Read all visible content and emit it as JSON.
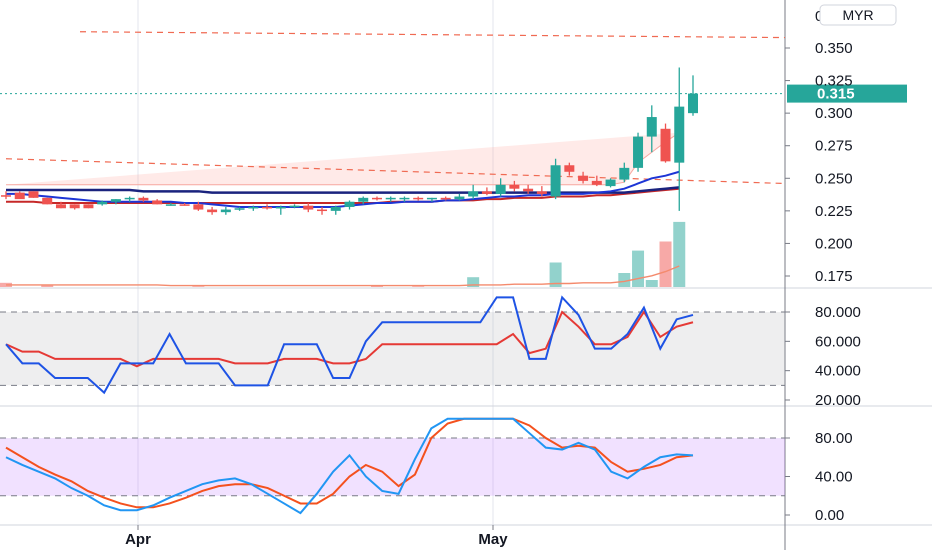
{
  "chart_data": [
    {
      "type": "candlestick",
      "title": "",
      "currency": "MYR",
      "price_axis": {
        "ylim": [
          0.16,
          0.3625
        ],
        "ticks": [
          "0.350",
          "0.325",
          "0.300",
          "0.275",
          "0.250",
          "0.225",
          "0.200",
          "0.175"
        ]
      },
      "last_price": {
        "value": 0.315,
        "label": "0.315"
      },
      "x_ticks": [
        "Apr",
        "May"
      ],
      "candles": [
        {
          "o": 0.237,
          "h": 0.24,
          "l": 0.234,
          "c": 0.236
        },
        {
          "o": 0.239,
          "h": 0.24,
          "l": 0.235,
          "c": 0.234
        },
        {
          "o": 0.24,
          "h": 0.24,
          "l": 0.235,
          "c": 0.235
        },
        {
          "o": 0.235,
          "h": 0.235,
          "l": 0.23,
          "c": 0.23
        },
        {
          "o": 0.23,
          "h": 0.232,
          "l": 0.227,
          "c": 0.227
        },
        {
          "o": 0.23,
          "h": 0.23,
          "l": 0.226,
          "c": 0.227
        },
        {
          "o": 0.23,
          "h": 0.23,
          "l": 0.227,
          "c": 0.227
        },
        {
          "o": 0.23,
          "h": 0.233,
          "l": 0.229,
          "c": 0.232
        },
        {
          "o": 0.232,
          "h": 0.234,
          "l": 0.23,
          "c": 0.234
        },
        {
          "o": 0.234,
          "h": 0.236,
          "l": 0.232,
          "c": 0.235
        },
        {
          "o": 0.235,
          "h": 0.236,
          "l": 0.232,
          "c": 0.233
        },
        {
          "o": 0.233,
          "h": 0.234,
          "l": 0.23,
          "c": 0.23
        },
        {
          "o": 0.23,
          "h": 0.231,
          "l": 0.229,
          "c": 0.23
        },
        {
          "o": 0.23,
          "h": 0.231,
          "l": 0.229,
          "c": 0.229
        },
        {
          "o": 0.23,
          "h": 0.232,
          "l": 0.225,
          "c": 0.226
        },
        {
          "o": 0.226,
          "h": 0.228,
          "l": 0.222,
          "c": 0.224
        },
        {
          "o": 0.224,
          "h": 0.228,
          "l": 0.222,
          "c": 0.226
        },
        {
          "o": 0.226,
          "h": 0.228,
          "l": 0.225,
          "c": 0.227
        },
        {
          "o": 0.227,
          "h": 0.229,
          "l": 0.225,
          "c": 0.228
        },
        {
          "o": 0.228,
          "h": 0.23,
          "l": 0.226,
          "c": 0.227
        },
        {
          "o": 0.227,
          "h": 0.229,
          "l": 0.222,
          "c": 0.228
        },
        {
          "o": 0.228,
          "h": 0.23,
          "l": 0.227,
          "c": 0.229
        },
        {
          "o": 0.229,
          "h": 0.231,
          "l": 0.224,
          "c": 0.226
        },
        {
          "o": 0.226,
          "h": 0.228,
          "l": 0.222,
          "c": 0.225
        },
        {
          "o": 0.225,
          "h": 0.229,
          "l": 0.222,
          "c": 0.228
        },
        {
          "o": 0.228,
          "h": 0.233,
          "l": 0.226,
          "c": 0.232
        },
        {
          "o": 0.232,
          "h": 0.236,
          "l": 0.23,
          "c": 0.235
        },
        {
          "o": 0.235,
          "h": 0.236,
          "l": 0.233,
          "c": 0.234
        },
        {
          "o": 0.234,
          "h": 0.236,
          "l": 0.232,
          "c": 0.235
        },
        {
          "o": 0.235,
          "h": 0.236,
          "l": 0.232,
          "c": 0.235
        },
        {
          "o": 0.235,
          "h": 0.236,
          "l": 0.233,
          "c": 0.234
        },
        {
          "o": 0.234,
          "h": 0.235,
          "l": 0.232,
          "c": 0.235
        },
        {
          "o": 0.235,
          "h": 0.236,
          "l": 0.233,
          "c": 0.234
        },
        {
          "o": 0.234,
          "h": 0.238,
          "l": 0.233,
          "c": 0.236
        },
        {
          "o": 0.236,
          "h": 0.245,
          "l": 0.234,
          "c": 0.24
        },
        {
          "o": 0.24,
          "h": 0.243,
          "l": 0.237,
          "c": 0.238
        },
        {
          "o": 0.238,
          "h": 0.25,
          "l": 0.236,
          "c": 0.245
        },
        {
          "o": 0.245,
          "h": 0.248,
          "l": 0.24,
          "c": 0.242
        },
        {
          "o": 0.242,
          "h": 0.245,
          "l": 0.238,
          "c": 0.24
        },
        {
          "o": 0.24,
          "h": 0.244,
          "l": 0.236,
          "c": 0.238
        },
        {
          "o": 0.236,
          "h": 0.265,
          "l": 0.234,
          "c": 0.26
        },
        {
          "o": 0.26,
          "h": 0.262,
          "l": 0.252,
          "c": 0.255
        },
        {
          "o": 0.252,
          "h": 0.255,
          "l": 0.246,
          "c": 0.248
        },
        {
          "o": 0.248,
          "h": 0.252,
          "l": 0.244,
          "c": 0.245
        },
        {
          "o": 0.244,
          "h": 0.25,
          "l": 0.243,
          "c": 0.249
        },
        {
          "o": 0.249,
          "h": 0.262,
          "l": 0.247,
          "c": 0.258
        },
        {
          "o": 0.258,
          "h": 0.285,
          "l": 0.255,
          "c": 0.282
        },
        {
          "o": 0.282,
          "h": 0.306,
          "l": 0.27,
          "c": 0.297
        },
        {
          "o": 0.288,
          "h": 0.292,
          "l": 0.262,
          "c": 0.263
        },
        {
          "o": 0.262,
          "h": 0.335,
          "l": 0.225,
          "c": 0.305
        },
        {
          "o": 0.3,
          "h": 0.329,
          "l": 0.298,
          "c": 0.315
        }
      ],
      "volume": [
        6,
        0,
        0,
        3,
        0,
        0,
        0,
        0,
        0,
        0,
        0,
        0,
        0,
        0,
        1,
        0,
        0,
        0,
        0,
        0,
        0,
        0,
        0,
        0,
        0,
        0,
        0,
        2,
        0,
        0,
        1,
        0,
        0,
        0,
        14,
        0,
        0,
        0,
        0,
        0,
        35,
        0,
        0,
        0,
        0,
        20,
        52,
        10,
        65,
        93
      ],
      "volume_ma": [
        3,
        3,
        3,
        3,
        3,
        3,
        3,
        3,
        3,
        3,
        3,
        3,
        2,
        2,
        2,
        2,
        2,
        2,
        2,
        2,
        2,
        2,
        2,
        2,
        2,
        2,
        2,
        2,
        2,
        2,
        2,
        2,
        2,
        2,
        3,
        3,
        3,
        4,
        4,
        4,
        5,
        5,
        6,
        6,
        6,
        8,
        12,
        16,
        22,
        30
      ],
      "overlays": {
        "upper_line": [
          0.245,
          0.245,
          0.245,
          0.245,
          0.245,
          0.245,
          0.245,
          0.245,
          0.245,
          0.245,
          0.245,
          0.245,
          0.245,
          0.245,
          0.245,
          0.245,
          0.245,
          0.245,
          0.245,
          0.245,
          0.245,
          0.245,
          0.245,
          0.245,
          0.245,
          0.245,
          0.245,
          0.245,
          0.245,
          0.245,
          0.245,
          0.245,
          0.245,
          0.245,
          0.245,
          0.245,
          0.245,
          0.245,
          0.245,
          0.245,
          0.245,
          0.245,
          0.245,
          0.245,
          0.245,
          0.247,
          0.262,
          0.27,
          0.278,
          0.285
        ],
        "fast_ma": [
          0.238,
          0.238,
          0.237,
          0.236,
          0.235,
          0.234,
          0.233,
          0.232,
          0.232,
          0.232,
          0.232,
          0.232,
          0.232,
          0.231,
          0.231,
          0.23,
          0.229,
          0.228,
          0.228,
          0.228,
          0.228,
          0.228,
          0.228,
          0.228,
          0.228,
          0.229,
          0.23,
          0.231,
          0.231,
          0.232,
          0.232,
          0.232,
          0.233,
          0.233,
          0.234,
          0.235,
          0.236,
          0.236,
          0.237,
          0.237,
          0.238,
          0.238,
          0.238,
          0.239,
          0.24,
          0.242,
          0.246,
          0.25,
          0.252,
          0.255
        ],
        "slow_ma": [
          0.241,
          0.241,
          0.241,
          0.241,
          0.241,
          0.241,
          0.241,
          0.241,
          0.241,
          0.241,
          0.24,
          0.24,
          0.24,
          0.24,
          0.24,
          0.239,
          0.239,
          0.239,
          0.239,
          0.239,
          0.239,
          0.239,
          0.239,
          0.239,
          0.239,
          0.239,
          0.239,
          0.239,
          0.239,
          0.239,
          0.239,
          0.239,
          0.239,
          0.239,
          0.239,
          0.239,
          0.239,
          0.239,
          0.239,
          0.239,
          0.239,
          0.239,
          0.239,
          0.239,
          0.239,
          0.239,
          0.24,
          0.241,
          0.242,
          0.243
        ],
        "red_ma": [
          0.232,
          0.232,
          0.232,
          0.231,
          0.231,
          0.231,
          0.231,
          0.231,
          0.231,
          0.231,
          0.231,
          0.231,
          0.231,
          0.231,
          0.231,
          0.231,
          0.231,
          0.231,
          0.231,
          0.231,
          0.231,
          0.231,
          0.231,
          0.231,
          0.231,
          0.231,
          0.231,
          0.231,
          0.232,
          0.232,
          0.232,
          0.232,
          0.233,
          0.233,
          0.233,
          0.234,
          0.234,
          0.235,
          0.235,
          0.235,
          0.236,
          0.236,
          0.236,
          0.237,
          0.237,
          0.238,
          0.239,
          0.24,
          0.241,
          0.242
        ],
        "dashed_trend": [
          {
            "x": 0,
            "y": 0.265
          },
          {
            "x": 49,
            "y": 0.246
          }
        ],
        "dashed_top": [
          {
            "x": 4,
            "y": 0.3625
          },
          {
            "x": 49,
            "y": 0.358
          }
        ]
      }
    },
    {
      "type": "line",
      "title": "",
      "ylim": [
        17.5,
        90
      ],
      "y_ticks": [
        "80.000",
        "60.000",
        "40.000",
        "20.000"
      ],
      "band": [
        30,
        80
      ],
      "series": [
        {
          "color": "#1e53e5",
          "values": [
            58,
            45,
            45,
            35,
            35,
            35,
            25,
            45,
            45,
            45,
            65,
            45,
            45,
            45,
            30,
            30,
            30,
            58,
            58,
            58,
            35,
            35,
            60,
            73,
            73,
            73,
            73,
            73,
            73,
            73,
            90,
            90,
            48,
            48,
            90,
            78,
            55,
            55,
            65,
            83,
            55,
            75,
            78
          ]
        },
        {
          "color": "#e53935",
          "values": [
            58,
            53,
            53,
            48,
            48,
            48,
            48,
            48,
            43,
            48,
            48,
            48,
            48,
            48,
            45,
            45,
            45,
            48,
            48,
            48,
            45,
            45,
            48,
            58,
            58,
            58,
            58,
            58,
            58,
            58,
            58,
            65,
            52,
            55,
            80,
            70,
            58,
            58,
            63,
            80,
            63,
            70,
            73
          ]
        }
      ]
    },
    {
      "type": "line",
      "title": "",
      "ylim": [
        -8,
        108
      ],
      "y_ticks": [
        "80.00",
        "40.00",
        "0.00"
      ],
      "band": [
        20,
        80
      ],
      "series": [
        {
          "color": "#2196f3",
          "values": [
            60,
            52,
            45,
            38,
            28,
            20,
            10,
            5,
            5,
            10,
            18,
            25,
            32,
            36,
            38,
            32,
            22,
            12,
            2,
            22,
            45,
            62,
            40,
            25,
            22,
            58,
            90,
            100,
            100,
            100,
            100,
            100,
            85,
            70,
            68,
            75,
            68,
            45,
            38,
            50,
            60,
            63,
            62
          ]
        },
        {
          "color": "#f4511e",
          "values": [
            70,
            60,
            50,
            42,
            35,
            25,
            18,
            12,
            8,
            8,
            12,
            18,
            25,
            30,
            32,
            32,
            28,
            20,
            12,
            12,
            22,
            40,
            52,
            45,
            30,
            42,
            80,
            95,
            100,
            100,
            100,
            100,
            93,
            80,
            70,
            72,
            70,
            55,
            45,
            48,
            52,
            60,
            62
          ]
        }
      ]
    }
  ]
}
